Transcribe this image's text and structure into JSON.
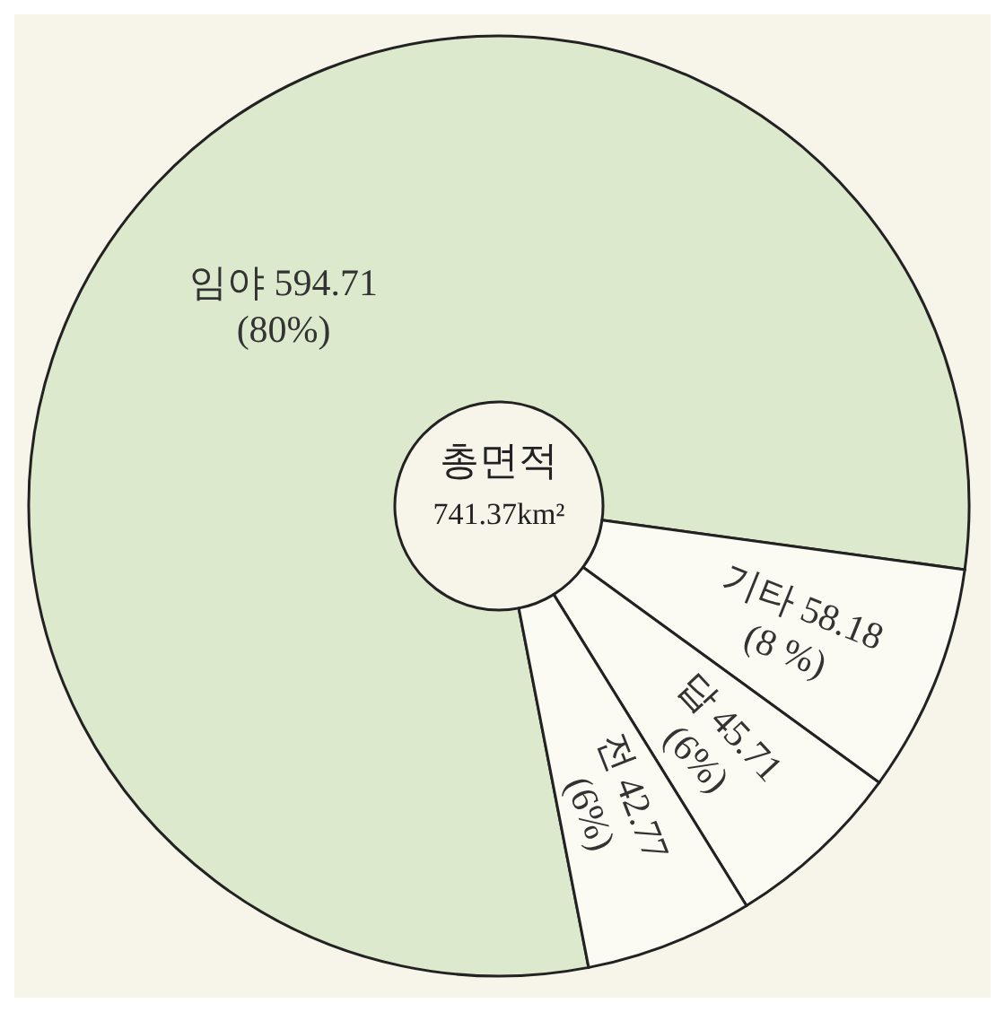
{
  "chart_data": {
    "type": "donut",
    "title": "총면적",
    "subtitle": "741.37km²",
    "categories": [
      "임야",
      "기타",
      "답",
      "전"
    ],
    "values": [
      594.71,
      58.18,
      45.71,
      42.77
    ],
    "colors": [
      "#dce9cc",
      "#fbfbf4",
      "#fbfbf4",
      "#fbfbf4"
    ],
    "value_labels": [
      "594.71 (80%)",
      "58.18 (8 %)",
      "45.71 (6%)",
      "42.77 (6%)"
    ]
  }
}
